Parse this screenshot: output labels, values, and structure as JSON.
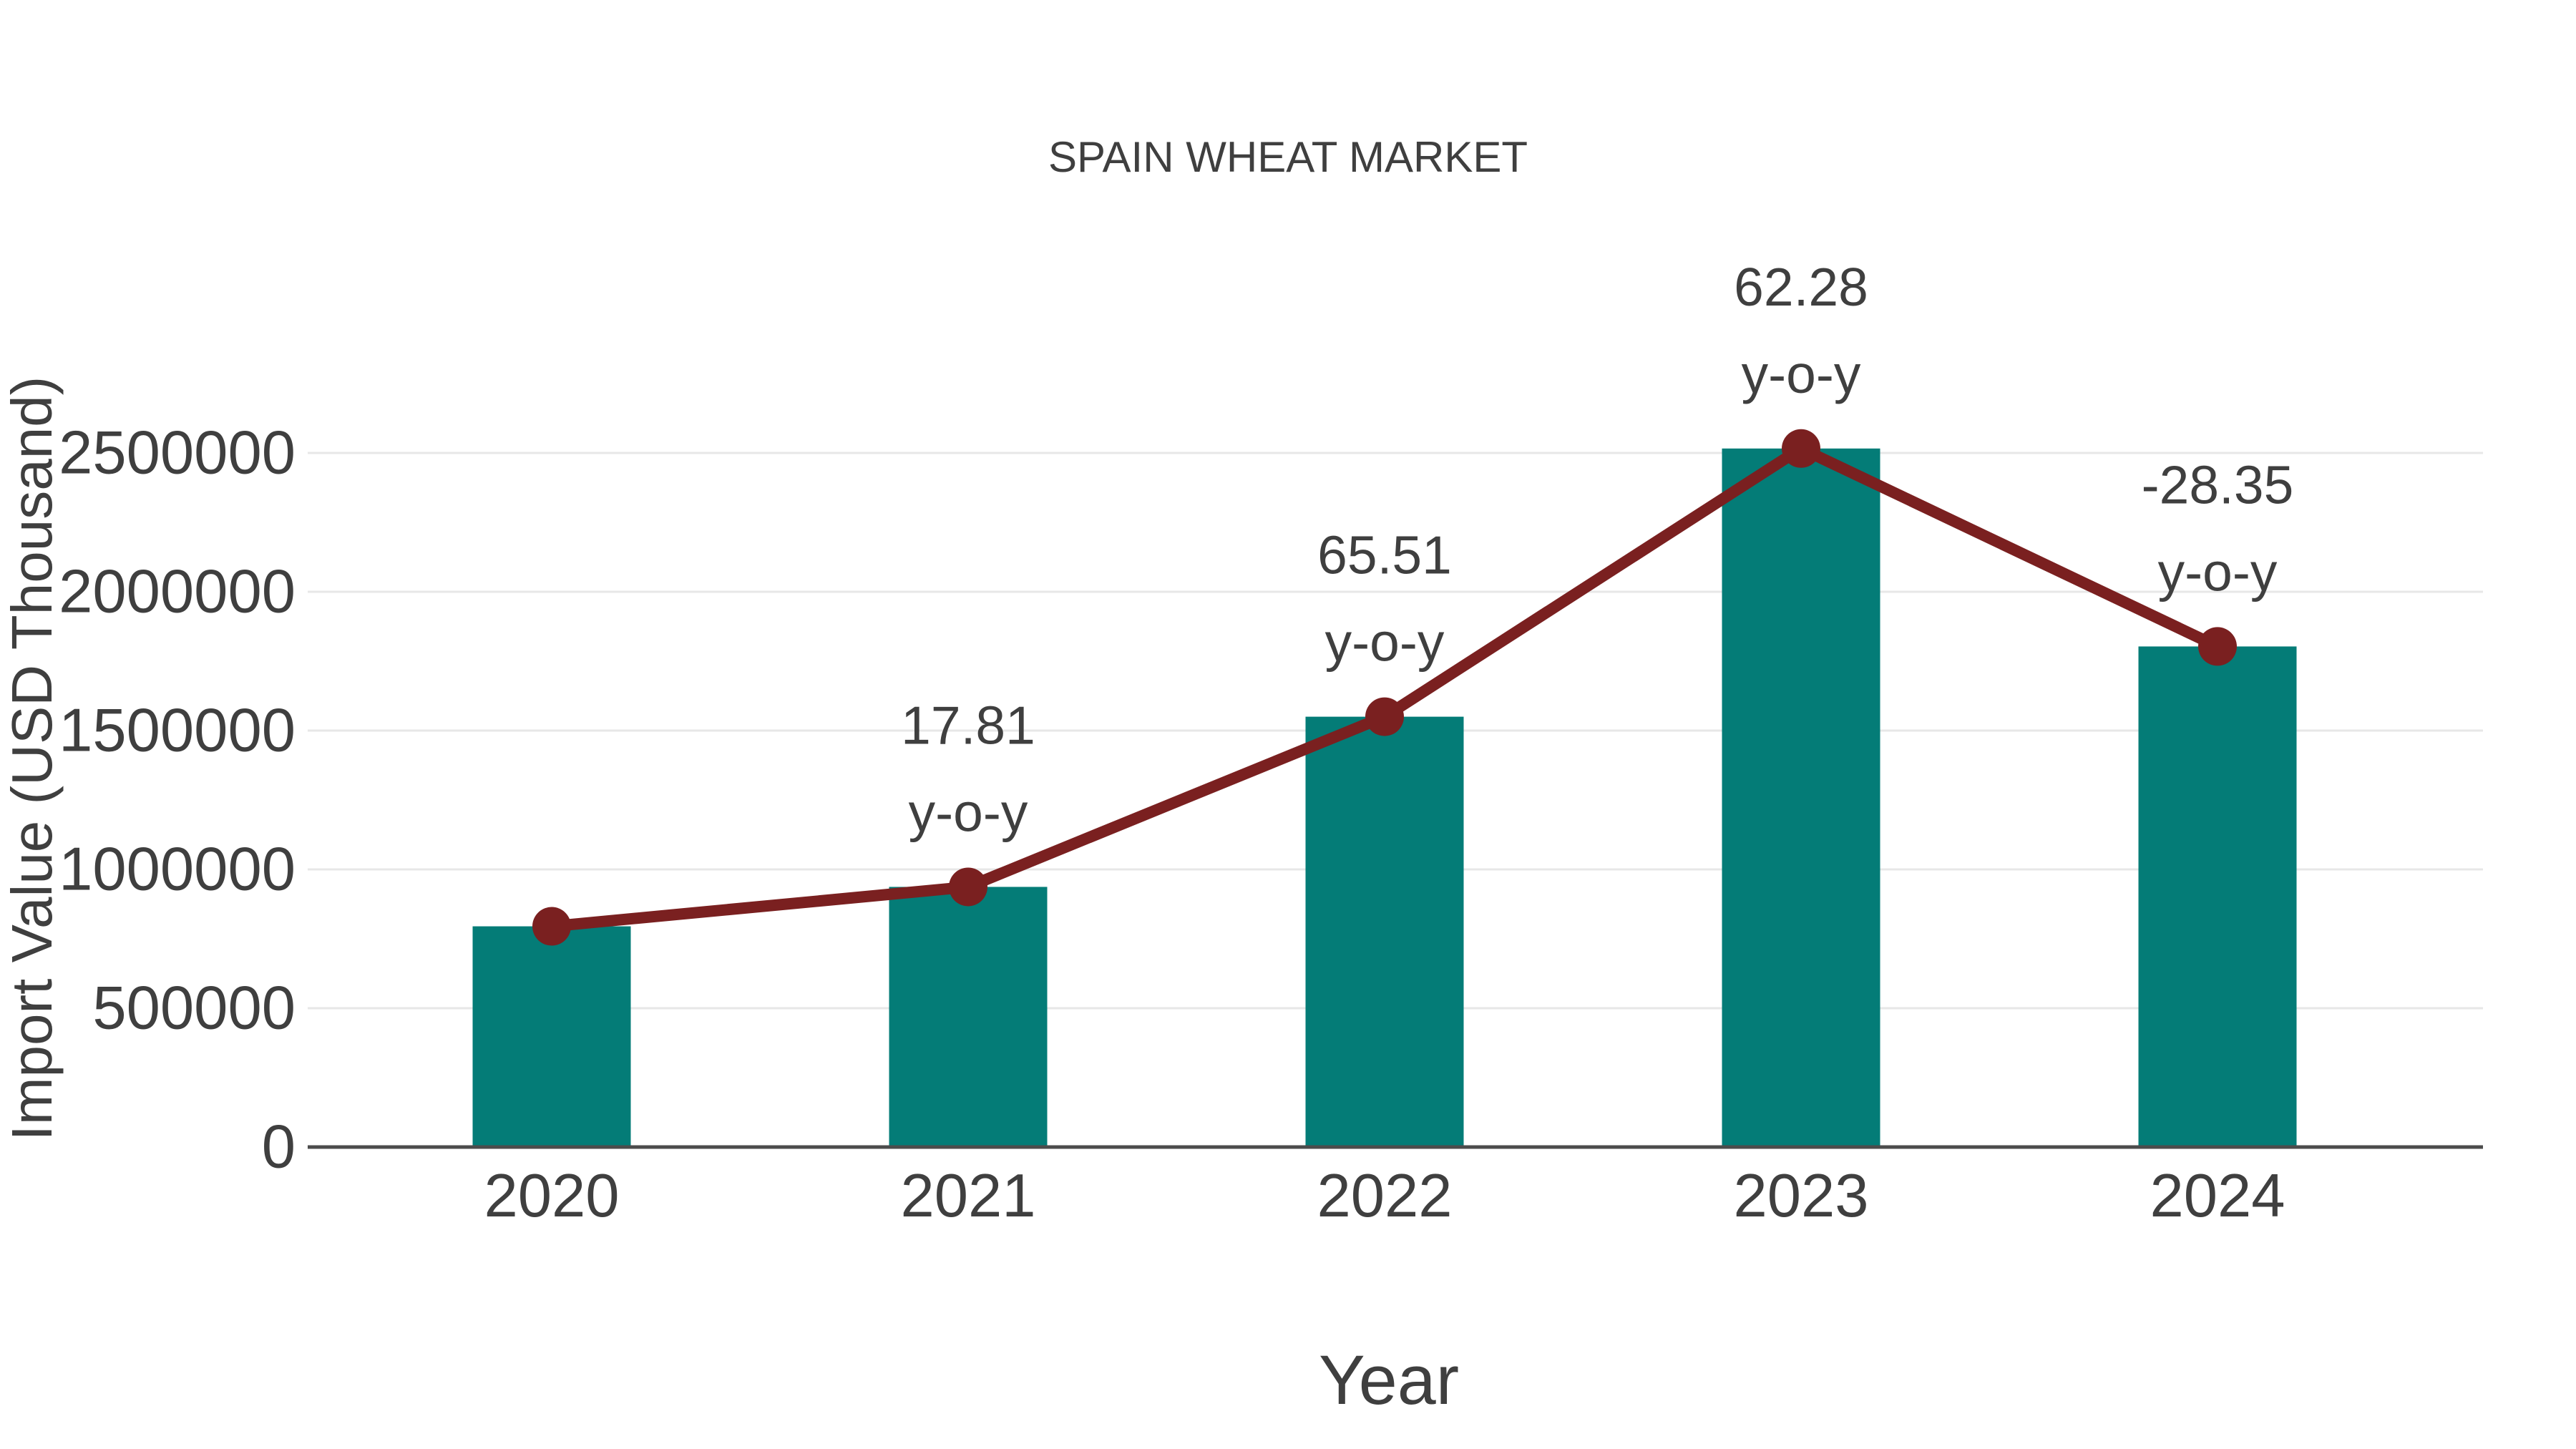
{
  "page": {
    "background": "#ffffff",
    "text_color": "#3f3f3f",
    "gridline_color": "#e7e7e7",
    "axisline_color": "#4c4c4c"
  },
  "chart_data": {
    "type": "bar",
    "title": "SPAIN WHEAT MARKET",
    "xlabel": "Year",
    "ylabel": "Import Value (USD Thousand)",
    "categories": [
      "2020",
      "2021",
      "2022",
      "2023",
      "2024"
    ],
    "series": [
      {
        "name": "import-value-bars",
        "type": "bar",
        "color": "#047c77",
        "values": [
          795000,
          937000,
          1550000,
          2516000,
          1803000
        ]
      },
      {
        "name": "yoy-change-line",
        "type": "line",
        "color": "#7a2020",
        "values": [
          795000,
          937000,
          1550000,
          2516000,
          1803000
        ],
        "point_labels": [
          null,
          "17.81",
          "65.51",
          "62.28",
          "-28.35"
        ],
        "point_label_suffix": "y-o-y"
      }
    ],
    "yticks": [
      0,
      500000,
      1000000,
      1500000,
      2000000,
      2500000
    ],
    "ylim": [
      0,
      2750000
    ],
    "grid": "horizontal-only",
    "legend_position": "none"
  }
}
